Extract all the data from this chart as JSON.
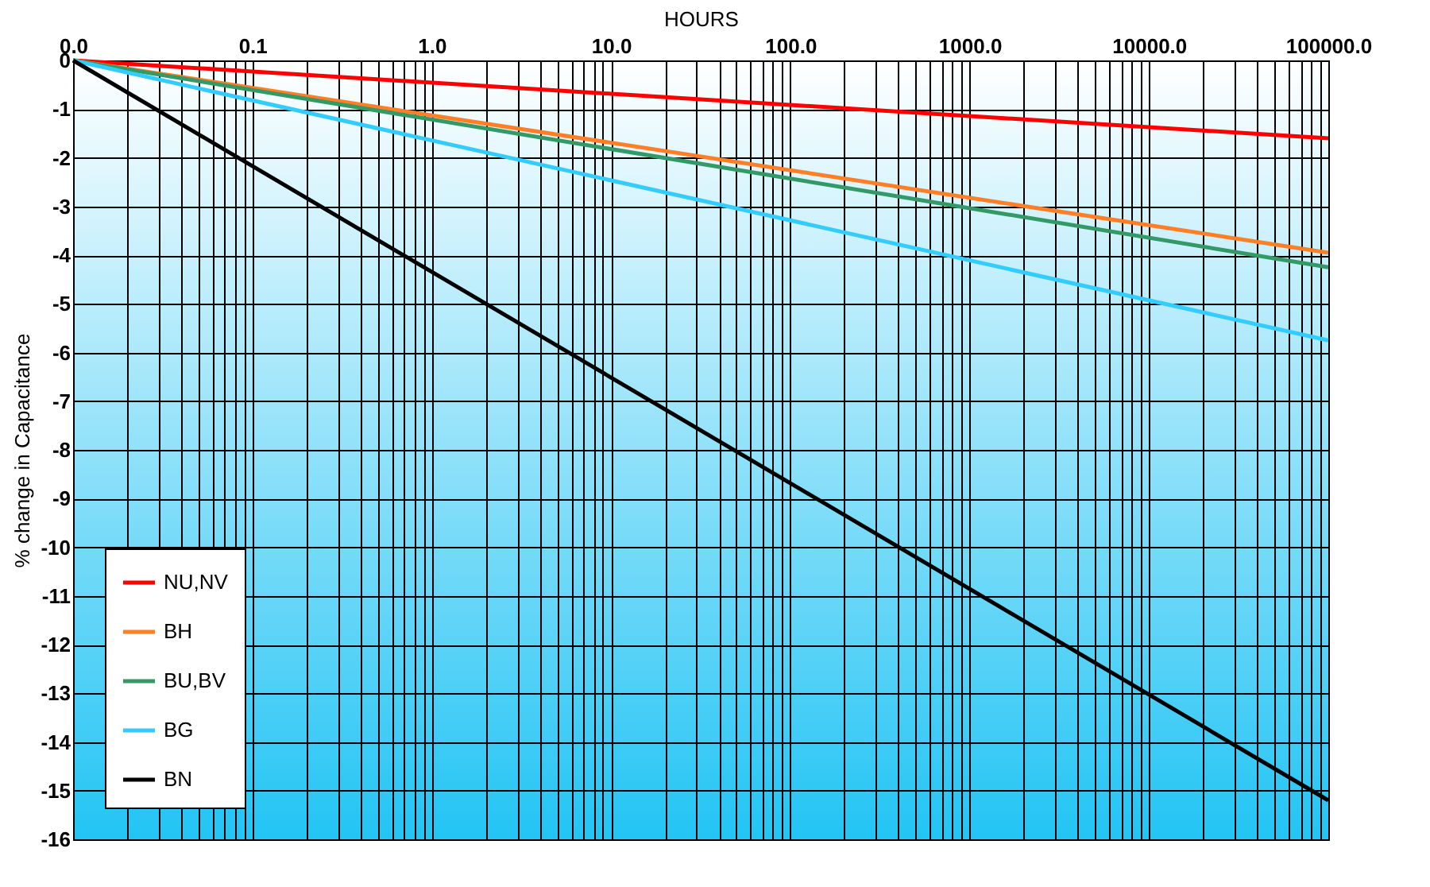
{
  "chart_data": {
    "type": "line",
    "xlabel": "HOURS",
    "ylabel": "% change in Capacitance",
    "log": "x",
    "xlim": [
      0.01,
      100000
    ],
    "ylim": [
      -16,
      0
    ],
    "xticks": [
      {
        "value": 0.01,
        "label": "0.0"
      },
      {
        "value": 0.1,
        "label": "0.1"
      },
      {
        "value": 1,
        "label": "1.0"
      },
      {
        "value": 10,
        "label": "10.0"
      },
      {
        "value": 100,
        "label": "100.0"
      },
      {
        "value": 1000,
        "label": "1000.0"
      },
      {
        "value": 10000,
        "label": "10000.0"
      },
      {
        "value": 100000,
        "label": "100000.0"
      },
      {
        "value": 0.02,
        "label": null
      },
      {
        "value": 0.03,
        "label": null
      },
      {
        "value": 0.04,
        "label": null
      },
      {
        "value": 0.05,
        "label": null
      },
      {
        "value": 0.06,
        "label": null
      },
      {
        "value": 0.07,
        "label": null
      },
      {
        "value": 0.08,
        "label": null
      },
      {
        "value": 0.09,
        "label": null
      },
      {
        "value": 0.2,
        "label": null
      },
      {
        "value": 0.3,
        "label": null
      },
      {
        "value": 0.4,
        "label": null
      },
      {
        "value": 0.5,
        "label": null
      },
      {
        "value": 0.6,
        "label": null
      },
      {
        "value": 0.7,
        "label": null
      },
      {
        "value": 0.8,
        "label": null
      },
      {
        "value": 0.9,
        "label": null
      },
      {
        "value": 2,
        "label": null
      },
      {
        "value": 3,
        "label": null
      },
      {
        "value": 4,
        "label": null
      },
      {
        "value": 5,
        "label": null
      },
      {
        "value": 6,
        "label": null
      },
      {
        "value": 7,
        "label": null
      },
      {
        "value": 8,
        "label": null
      },
      {
        "value": 9,
        "label": null
      },
      {
        "value": 20,
        "label": null
      },
      {
        "value": 30,
        "label": null
      },
      {
        "value": 40,
        "label": null
      },
      {
        "value": 50,
        "label": null
      },
      {
        "value": 60,
        "label": null
      },
      {
        "value": 70,
        "label": null
      },
      {
        "value": 80,
        "label": null
      },
      {
        "value": 90,
        "label": null
      },
      {
        "value": 200,
        "label": null
      },
      {
        "value": 300,
        "label": null
      },
      {
        "value": 400,
        "label": null
      },
      {
        "value": 500,
        "label": null
      },
      {
        "value": 600,
        "label": null
      },
      {
        "value": 700,
        "label": null
      },
      {
        "value": 800,
        "label": null
      },
      {
        "value": 900,
        "label": null
      },
      {
        "value": 2000,
        "label": null
      },
      {
        "value": 3000,
        "label": null
      },
      {
        "value": 4000,
        "label": null
      },
      {
        "value": 5000,
        "label": null
      },
      {
        "value": 6000,
        "label": null
      },
      {
        "value": 7000,
        "label": null
      },
      {
        "value": 8000,
        "label": null
      },
      {
        "value": 9000,
        "label": null
      },
      {
        "value": 20000,
        "label": null
      },
      {
        "value": 30000,
        "label": null
      },
      {
        "value": 40000,
        "label": null
      },
      {
        "value": 50000,
        "label": null
      },
      {
        "value": 60000,
        "label": null
      },
      {
        "value": 70000,
        "label": null
      },
      {
        "value": 80000,
        "label": null
      },
      {
        "value": 90000,
        "label": null
      }
    ],
    "yticks": [
      0,
      -1,
      -2,
      -3,
      -4,
      -5,
      -6,
      -7,
      -8,
      -9,
      -10,
      -11,
      -12,
      -13,
      -14,
      -15,
      -16
    ],
    "grid": true,
    "legend": "bottom left",
    "marker": "none",
    "line_style": "solid",
    "x": [
      0.01,
      100000
    ],
    "series": [
      {
        "name": "NU,NV",
        "color": "#ff0000",
        "values": [
          0,
          -1.6
        ]
      },
      {
        "name": "BH",
        "color": "#ff7f27",
        "values": [
          0,
          -3.95
        ]
      },
      {
        "name": "BU,BV",
        "color": "#339966",
        "values": [
          0,
          -4.25
        ]
      },
      {
        "name": "BG",
        "color": "#33ccff",
        "values": [
          0,
          -5.75
        ]
      },
      {
        "name": "BN",
        "color": "#000000",
        "values": [
          0,
          -15.2
        ]
      }
    ]
  }
}
